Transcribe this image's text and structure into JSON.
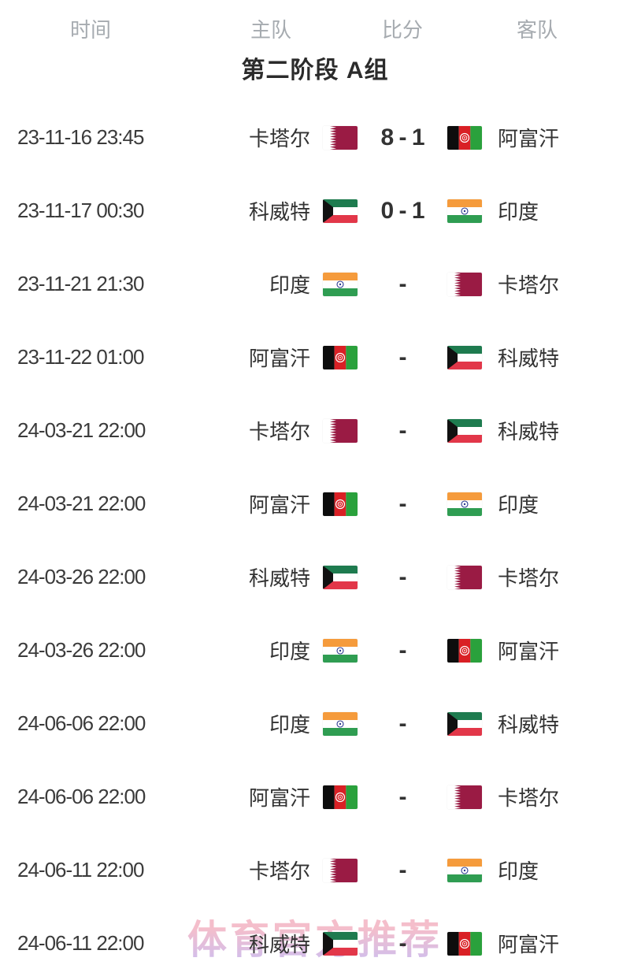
{
  "header": {
    "time": "时间",
    "home": "主队",
    "score": "比分",
    "away": "客队"
  },
  "group_title": "第二阶段 A组",
  "teams": {
    "qatar": {
      "name": "卡塔尔"
    },
    "afghanistan": {
      "name": "阿富汗"
    },
    "kuwait": {
      "name": "科威特"
    },
    "india": {
      "name": "印度"
    }
  },
  "flag_colors": {
    "qatar": {
      "maroon": "#9a1b44",
      "white": "#ffffff"
    },
    "afghanistan": {
      "black": "#0d0d0d",
      "red": "#d92025",
      "green": "#2aa13c",
      "emblem": "#ffffff"
    },
    "kuwait": {
      "green": "#1e7b4f",
      "white": "#ffffff",
      "red": "#e23749",
      "black": "#111111"
    },
    "india": {
      "saffron": "#f59b3c",
      "white": "#ffffff",
      "green": "#2f9d52",
      "navy": "#2b3990"
    }
  },
  "matches": [
    {
      "time": "23-11-16 23:45",
      "home": "qatar",
      "away": "afghanistan",
      "score": "8 - 1"
    },
    {
      "time": "23-11-17 00:30",
      "home": "kuwait",
      "away": "india",
      "score": "0 - 1"
    },
    {
      "time": "23-11-21 21:30",
      "home": "india",
      "away": "qatar",
      "score": "-"
    },
    {
      "time": "23-11-22 01:00",
      "home": "afghanistan",
      "away": "kuwait",
      "score": "-"
    },
    {
      "time": "24-03-21 22:00",
      "home": "qatar",
      "away": "kuwait",
      "score": "-"
    },
    {
      "time": "24-03-21 22:00",
      "home": "afghanistan",
      "away": "india",
      "score": "-"
    },
    {
      "time": "24-03-26 22:00",
      "home": "kuwait",
      "away": "qatar",
      "score": "-"
    },
    {
      "time": "24-03-26 22:00",
      "home": "india",
      "away": "afghanistan",
      "score": "-"
    },
    {
      "time": "24-06-06 22:00",
      "home": "india",
      "away": "kuwait",
      "score": "-"
    },
    {
      "time": "24-06-06 22:00",
      "home": "afghanistan",
      "away": "qatar",
      "score": "-"
    },
    {
      "time": "24-06-11 22:00",
      "home": "qatar",
      "away": "india",
      "score": "-"
    },
    {
      "time": "24-06-11 22:00",
      "home": "kuwait",
      "away": "afghanistan",
      "score": "-"
    }
  ],
  "watermark": {
    "text": "体育官方推荐",
    "color_top": "#f4bac8",
    "color_bottom": "#c8baf0"
  }
}
